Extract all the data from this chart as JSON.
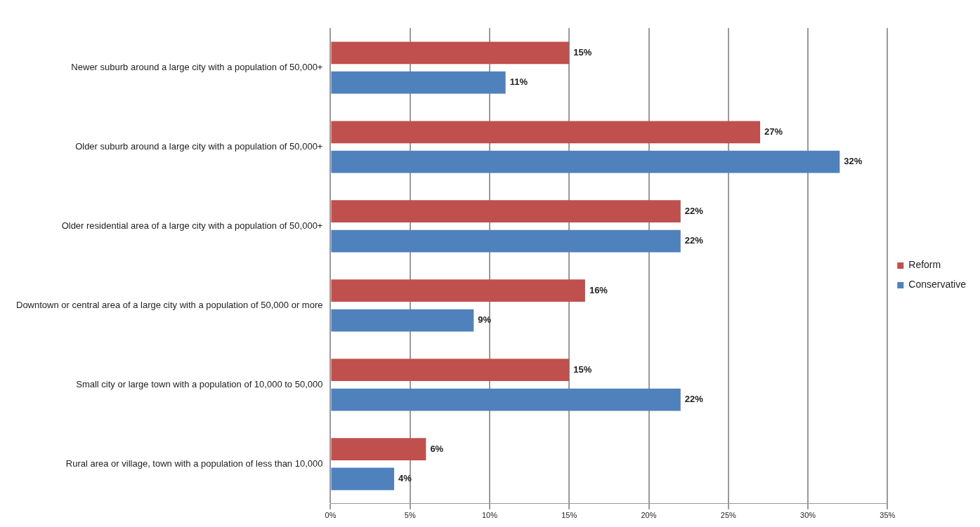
{
  "chart_data": {
    "type": "bar",
    "orientation": "horizontal",
    "categories": [
      "Newer suburb around a large city with a population of 50,000+",
      "Older suburb around a large city with a population of 50,000+",
      "Older residential area of a large city with a population of 50,000+",
      "Downtown or central area of a large city with a population of 50,000 or more",
      "Small city or large town with a population of 10,000 to 50,000",
      "Rural area or village, town with a population of less than 10,000"
    ],
    "series": [
      {
        "name": "Reform",
        "color": "#c0504d",
        "values": [
          15,
          27,
          22,
          16,
          15,
          6
        ],
        "value_labels": [
          "15%",
          "27%",
          "22%",
          "16%",
          "15%",
          "6%"
        ]
      },
      {
        "name": "Conservative",
        "color": "#4f81bd",
        "values": [
          11,
          32,
          22,
          9,
          22,
          4
        ],
        "value_labels": [
          "11%",
          "32%",
          "22%",
          "9%",
          "22%",
          "4%"
        ]
      }
    ],
    "xlim": [
      0,
      35
    ],
    "xticks": [
      {
        "value": 0,
        "label": "0%"
      },
      {
        "value": 5,
        "label": "5%"
      },
      {
        "value": 10,
        "label": "10%"
      },
      {
        "value": 15,
        "label": "15%"
      },
      {
        "value": 20,
        "label": "20%"
      },
      {
        "value": 25,
        "label": "25%"
      },
      {
        "value": 30,
        "label": "30%"
      },
      {
        "value": 35,
        "label": "35%"
      }
    ],
    "grid": "x",
    "legend": "right"
  }
}
